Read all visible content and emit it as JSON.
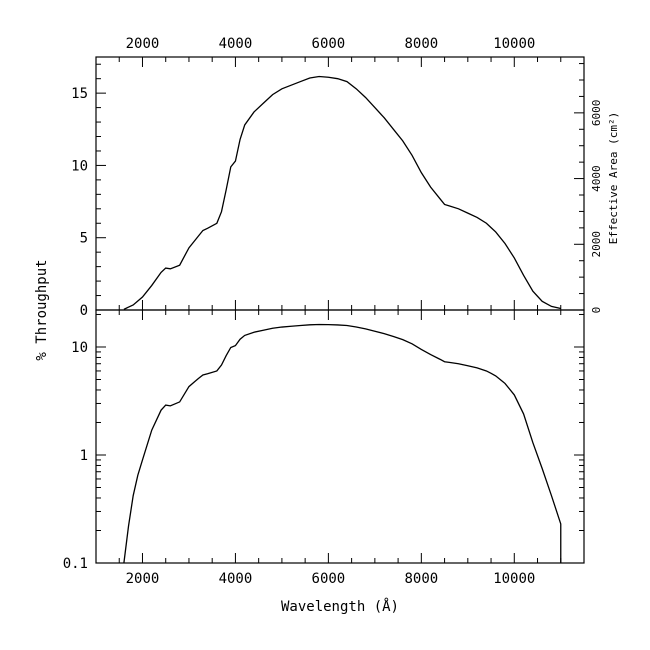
{
  "chart_data": [
    {
      "type": "line",
      "panel": "top",
      "xlabel": "Wavelength (Å)",
      "ylabel": "% Throughput",
      "y2label": "Effective Area (cm²)",
      "x_tick_labels_top": [
        "2000",
        "4000",
        "6000",
        "8000",
        "10000"
      ],
      "y_tick_labels": [
        "0",
        "5",
        "10",
        "15"
      ],
      "y2_tick_labels": [
        "0",
        "2000",
        "4000",
        "6000"
      ],
      "xlim": [
        1000,
        11500
      ],
      "ylim": [
        0,
        17.5
      ],
      "y2lim_approx": [
        0,
        7700
      ],
      "series": [
        {
          "x": [
            1600,
            1800,
            2000,
            2200,
            2400,
            2500,
            2600,
            2800,
            3000,
            3200,
            3300,
            3400,
            3600,
            3700,
            3800,
            3900,
            4000,
            4100,
            4200,
            4400,
            4600,
            4800,
            5000,
            5200,
            5400,
            5600,
            5800,
            6000,
            6200,
            6400,
            6600,
            6800,
            7000,
            7200,
            7400,
            7600,
            7800,
            8000,
            8200,
            8400,
            8500,
            8600,
            8800,
            9000,
            9200,
            9400,
            9500,
            9600,
            9800,
            10000,
            10200,
            10400,
            10600,
            10800,
            11000
          ],
          "y": [
            0.05,
            0.35,
            0.9,
            1.7,
            2.6,
            2.9,
            2.85,
            3.1,
            4.3,
            5.1,
            5.5,
            5.65,
            6.0,
            6.8,
            8.3,
            9.9,
            10.3,
            11.8,
            12.8,
            13.7,
            14.3,
            14.9,
            15.3,
            15.55,
            15.8,
            16.05,
            16.15,
            16.1,
            16.0,
            15.8,
            15.3,
            14.7,
            14.0,
            13.3,
            12.5,
            11.7,
            10.7,
            9.5,
            8.5,
            7.7,
            7.3,
            7.2,
            7.0,
            6.7,
            6.4,
            6.0,
            5.7,
            5.4,
            4.6,
            3.6,
            2.4,
            1.3,
            0.6,
            0.25,
            0.1
          ]
        }
      ]
    },
    {
      "type": "line",
      "panel": "bottom",
      "yscale": "log",
      "xlabel": "Wavelength (Å)",
      "x_tick_labels": [
        "2000",
        "4000",
        "6000",
        "8000",
        "10000"
      ],
      "y_tick_labels": [
        "0.1",
        "1",
        "10"
      ],
      "xlim": [
        1000,
        11500
      ],
      "ylim": [
        0.1,
        22
      ],
      "series": [
        {
          "x": [
            1600,
            1700,
            1800,
            1900,
            2000,
            2200,
            2400,
            2500,
            2600,
            2800,
            3000,
            3200,
            3300,
            3400,
            3600,
            3700,
            3800,
            3900,
            4000,
            4100,
            4200,
            4400,
            4600,
            4800,
            5000,
            5200,
            5400,
            5600,
            5800,
            6000,
            6200,
            6400,
            6600,
            6800,
            7000,
            7200,
            7400,
            7600,
            7800,
            8000,
            8200,
            8400,
            8500,
            8600,
            8800,
            9000,
            9200,
            9400,
            9500,
            9600,
            9800,
            10000,
            10200,
            10400,
            10600,
            10800,
            11000,
            11000
          ],
          "y": [
            0.1,
            0.22,
            0.42,
            0.65,
            0.9,
            1.7,
            2.6,
            2.9,
            2.85,
            3.1,
            4.3,
            5.1,
            5.5,
            5.65,
            6.0,
            6.8,
            8.3,
            9.9,
            10.3,
            11.8,
            12.8,
            13.7,
            14.3,
            14.9,
            15.3,
            15.55,
            15.8,
            16.05,
            16.15,
            16.1,
            16.0,
            15.8,
            15.3,
            14.7,
            14.0,
            13.3,
            12.5,
            11.7,
            10.7,
            9.5,
            8.5,
            7.7,
            7.3,
            7.2,
            7.0,
            6.7,
            6.4,
            6.0,
            5.7,
            5.4,
            4.6,
            3.6,
            2.4,
            1.3,
            0.75,
            0.42,
            0.23,
            0.1
          ]
        }
      ]
    }
  ]
}
